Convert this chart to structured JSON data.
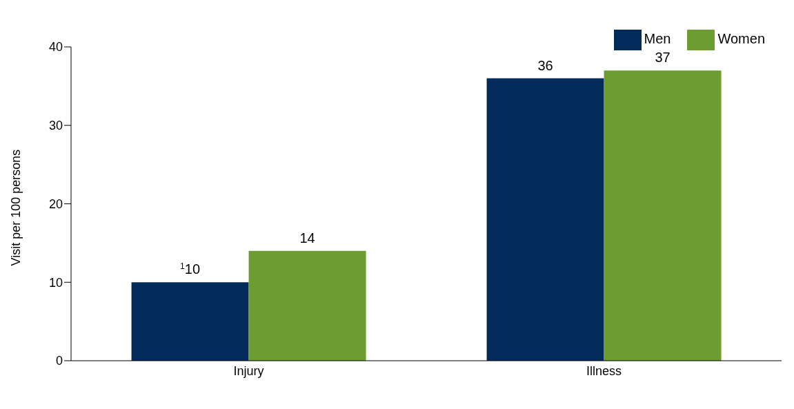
{
  "chart_data": {
    "type": "bar",
    "ylabel": "Visit per 100 persons",
    "categories": [
      "Injury",
      "Illness"
    ],
    "series": [
      {
        "name": "Men",
        "color": "#022b5c",
        "values": [
          10,
          36
        ],
        "value_labels": [
          "$^{1}$10",
          "36"
        ]
      },
      {
        "name": "Women",
        "color": "#6d9d31",
        "values": [
          14,
          37
        ],
        "value_labels": [
          "14",
          "37"
        ]
      }
    ],
    "ylim": [
      0,
      40
    ],
    "yticks": [
      0,
      10,
      20,
      30,
      40
    ],
    "grid": false,
    "legend": "top right"
  }
}
